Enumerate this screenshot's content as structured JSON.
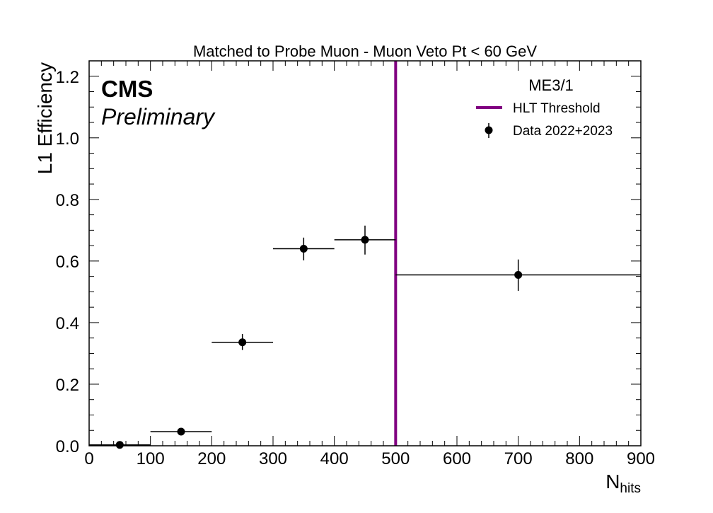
{
  "chart_data": {
    "type": "scatter",
    "title": "Matched to Probe Muon - Muon Veto Pt < 60 GeV",
    "experiment_label": "CMS",
    "status_label": "Preliminary",
    "ylabel": "L1 Efficiency",
    "xlabel": {
      "main": "N",
      "sub": "hits"
    },
    "xlim": [
      0,
      900
    ],
    "ylim": [
      0,
      1.25
    ],
    "x_ticks": [
      0,
      100,
      200,
      300,
      400,
      500,
      600,
      700,
      800,
      900
    ],
    "y_ticks": [
      0.0,
      0.2,
      0.4,
      0.6,
      0.8,
      1.0,
      1.2
    ],
    "x_tick_labels": [
      "0",
      "100",
      "200",
      "300",
      "400",
      "500",
      "600",
      "700",
      "800",
      "900"
    ],
    "y_tick_labels": [
      "0.0",
      "0.2",
      "0.4",
      "0.6",
      "0.8",
      "1.0",
      "1.2"
    ],
    "grid": false,
    "legend": {
      "title": "ME3/1",
      "placement": "top-right",
      "entries": [
        {
          "label": "HLT Threshold",
          "kind": "line",
          "color": "#800080"
        },
        {
          "label": "Data 2022+2023",
          "kind": "errorbar",
          "color": "#000000"
        }
      ]
    },
    "threshold": {
      "x": 500,
      "color": "#800080"
    },
    "series": [
      {
        "name": "Data 2022+2023",
        "color": "#000000",
        "points": [
          {
            "x": 50,
            "x_low": 0,
            "x_high": 100,
            "y": 0.003,
            "y_err_low": 0.003,
            "y_err_high": 0.004
          },
          {
            "x": 150,
            "x_low": 100,
            "x_high": 200,
            "y": 0.046,
            "y_err_low": 0.008,
            "y_err_high": 0.009
          },
          {
            "x": 250,
            "x_low": 200,
            "x_high": 300,
            "y": 0.336,
            "y_err_low": 0.025,
            "y_err_high": 0.027
          },
          {
            "x": 350,
            "x_low": 300,
            "x_high": 400,
            "y": 0.64,
            "y_err_low": 0.038,
            "y_err_high": 0.036
          },
          {
            "x": 450,
            "x_low": 400,
            "x_high": 500,
            "y": 0.669,
            "y_err_low": 0.048,
            "y_err_high": 0.046
          },
          {
            "x": 700,
            "x_low": 500,
            "x_high": 900,
            "y": 0.555,
            "y_err_low": 0.052,
            "y_err_high": 0.05
          }
        ]
      }
    ]
  }
}
